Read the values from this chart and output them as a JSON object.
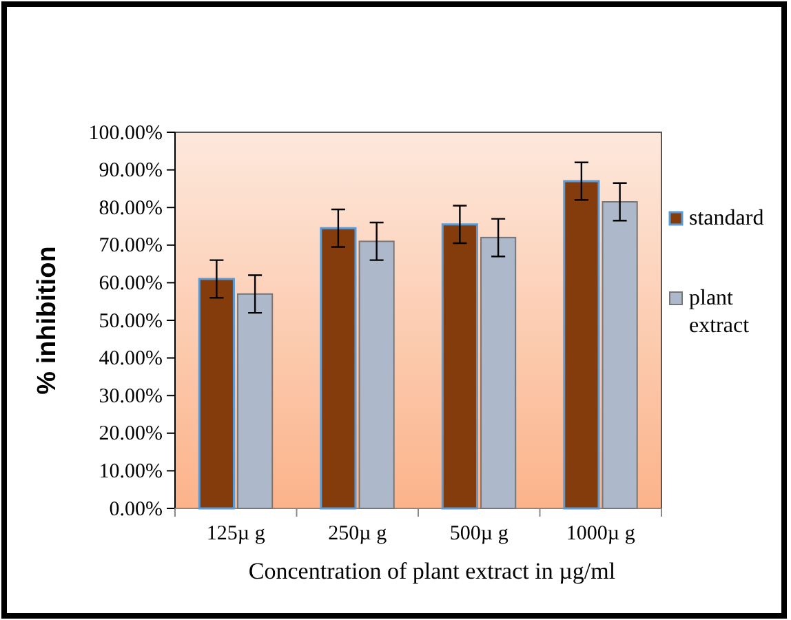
{
  "chart_data": {
    "type": "bar",
    "categories": [
      "125µ g",
      "250µ g",
      "500µ g",
      "1000µ g"
    ],
    "series": [
      {
        "name": "standard",
        "color": "#843c0c",
        "values": [
          61,
          74.5,
          75.5,
          87
        ],
        "errors": [
          5,
          5,
          5,
          5
        ]
      },
      {
        "name": "plant extract",
        "color": "#adb9ca",
        "values": [
          57,
          71,
          72,
          81.5
        ],
        "errors": [
          5,
          5,
          5,
          5
        ]
      }
    ],
    "xlabel": "Concentration  of plant extract in µg/ml",
    "ylabel": "% inhibition",
    "ylim": [
      0,
      100
    ],
    "yticks": [
      {
        "value": 0,
        "label": "0.00%"
      },
      {
        "value": 10,
        "label": "10.00%"
      },
      {
        "value": 20,
        "label": "20.00%"
      },
      {
        "value": 30,
        "label": "30.00%"
      },
      {
        "value": 40,
        "label": "40.00%"
      },
      {
        "value": 50,
        "label": "50.00%"
      },
      {
        "value": 60,
        "label": "60.00%"
      },
      {
        "value": 70,
        "label": "70.00%"
      },
      {
        "value": 80,
        "label": "80.00%"
      },
      {
        "value": 90,
        "label": "90.00%"
      },
      {
        "value": 100,
        "label": "100.00%"
      }
    ],
    "legend": "right"
  }
}
